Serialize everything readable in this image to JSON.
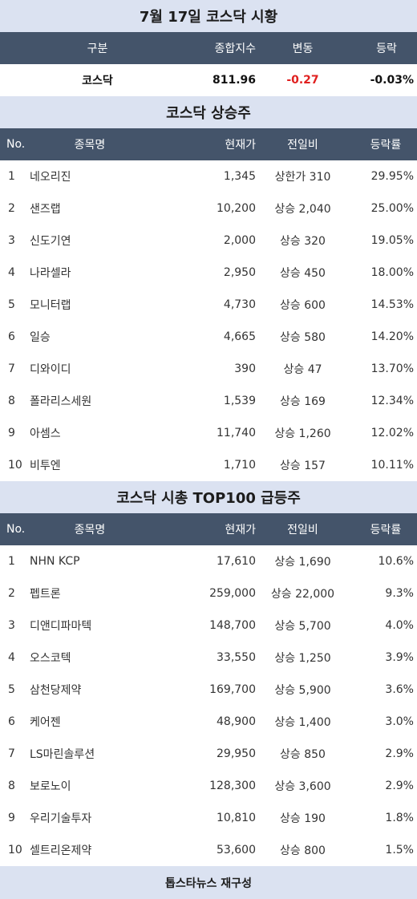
{
  "title": "7월 17일 코스닥 시황",
  "summary": {
    "headers": [
      "구분",
      "종합지수",
      "변동",
      "등락"
    ],
    "label": "코스닥",
    "index": "811.96",
    "change": "-0.27",
    "rate": "-0.03%"
  },
  "gainers": {
    "title": "코스닥 상승주",
    "headers": [
      "No.",
      "종목명",
      "현재가",
      "전일비",
      "등락률"
    ],
    "rows": [
      {
        "no": "1",
        "name": "네오리진",
        "price": "1,345",
        "change": "상한가 310",
        "rate": "29.95%"
      },
      {
        "no": "2",
        "name": "샌즈랩",
        "price": "10,200",
        "change": "상승 2,040",
        "rate": "25.00%"
      },
      {
        "no": "3",
        "name": "신도기연",
        "price": "2,000",
        "change": "상승 320",
        "rate": "19.05%"
      },
      {
        "no": "4",
        "name": "나라셀라",
        "price": "2,950",
        "change": "상승 450",
        "rate": "18.00%"
      },
      {
        "no": "5",
        "name": "모니터랩",
        "price": "4,730",
        "change": "상승 600",
        "rate": "14.53%"
      },
      {
        "no": "6",
        "name": "일승",
        "price": "4,665",
        "change": "상승 580",
        "rate": "14.20%"
      },
      {
        "no": "7",
        "name": "디와이디",
        "price": "390",
        "change": "상승 47",
        "rate": "13.70%"
      },
      {
        "no": "8",
        "name": "폴라리스세원",
        "price": "1,539",
        "change": "상승 169",
        "rate": "12.34%"
      },
      {
        "no": "9",
        "name": "아셈스",
        "price": "11,740",
        "change": "상승 1,260",
        "rate": "12.02%"
      },
      {
        "no": "10",
        "name": "비투엔",
        "price": "1,710",
        "change": "상승 157",
        "rate": "10.11%"
      }
    ]
  },
  "top100": {
    "title": "코스닥 시총 TOP100 급등주",
    "headers": [
      "No.",
      "종목명",
      "현재가",
      "전일비",
      "등락률"
    ],
    "rows": [
      {
        "no": "1",
        "name": "NHN KCP",
        "price": "17,610",
        "change": "상승 1,690",
        "rate": "10.6%"
      },
      {
        "no": "2",
        "name": "펩트론",
        "price": "259,000",
        "change": "상승 22,000",
        "rate": "9.3%"
      },
      {
        "no": "3",
        "name": "디앤디파마텍",
        "price": "148,700",
        "change": "상승 5,700",
        "rate": "4.0%"
      },
      {
        "no": "4",
        "name": "오스코텍",
        "price": "33,550",
        "change": "상승 1,250",
        "rate": "3.9%"
      },
      {
        "no": "5",
        "name": "삼천당제약",
        "price": "169,700",
        "change": "상승 5,900",
        "rate": "3.6%"
      },
      {
        "no": "6",
        "name": "케어젠",
        "price": "48,900",
        "change": "상승 1,400",
        "rate": "3.0%"
      },
      {
        "no": "7",
        "name": "LS마린솔루션",
        "price": "29,950",
        "change": "상승 850",
        "rate": "2.9%"
      },
      {
        "no": "8",
        "name": "보로노이",
        "price": "128,300",
        "change": "상승 3,600",
        "rate": "2.9%"
      },
      {
        "no": "9",
        "name": "우리기술투자",
        "price": "10,810",
        "change": "상승 190",
        "rate": "1.8%"
      },
      {
        "no": "10",
        "name": "셀트리온제약",
        "price": "53,600",
        "change": "상승 800",
        "rate": "1.5%"
      }
    ]
  },
  "footer": "톱스타뉴스 재구성"
}
